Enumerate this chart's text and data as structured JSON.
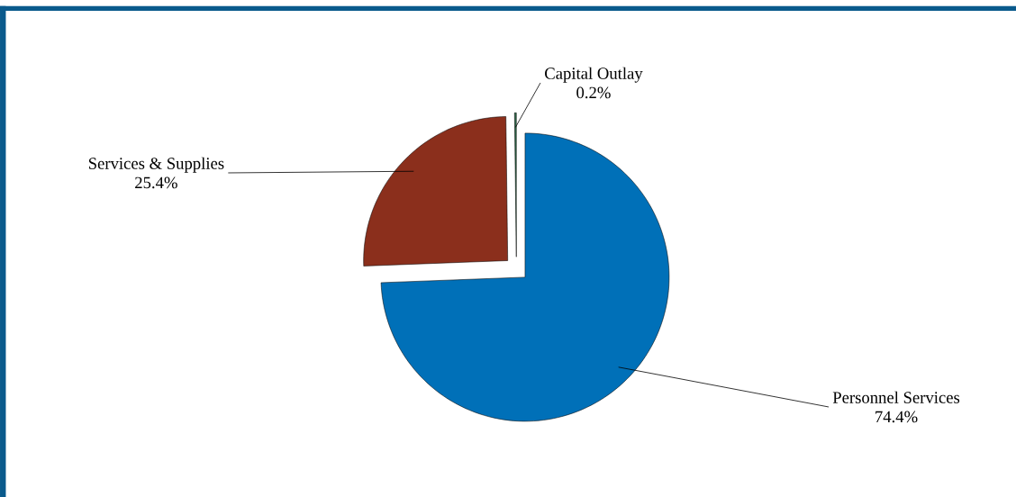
{
  "chart_data": {
    "type": "pie",
    "categories": [
      "Personnel Services",
      "Services & Supplies",
      "Capital Outlay"
    ],
    "values": [
      74.4,
      25.4,
      0.2
    ],
    "value_labels": [
      "74.4%",
      "25.4%",
      "0.2%"
    ],
    "colors": [
      "#0070b8",
      "#8b2f1c",
      "#2e6b4a"
    ]
  }
}
